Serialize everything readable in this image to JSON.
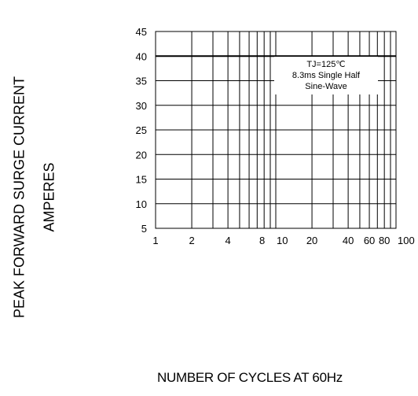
{
  "chart_data": {
    "type": "line",
    "title": "",
    "ylabel": "PEAK FORWARD SURGE CURRENT",
    "ylabel_units": "AMPERES",
    "xlabel": "NUMBER OF CYCLES AT 60Hz",
    "x_scale": "log",
    "xlim": [
      1,
      100
    ],
    "ylim": [
      5,
      45
    ],
    "grid": true,
    "x_ticks": [
      {
        "value": 1,
        "label": "1"
      },
      {
        "value": 2,
        "label": "2"
      },
      {
        "value": 4,
        "label": "4"
      },
      {
        "value": 8,
        "label": "8"
      },
      {
        "value": 10,
        "label": "10"
      },
      {
        "value": 20,
        "label": "20"
      },
      {
        "value": 40,
        "label": "40"
      },
      {
        "value": 60,
        "label": "60"
      },
      {
        "value": 80,
        "label": "80"
      },
      {
        "value": 100,
        "label": "100"
      }
    ],
    "x_grid_values": [
      2,
      3,
      4,
      5,
      6,
      7,
      8,
      9,
      10,
      20,
      30,
      40,
      50,
      60,
      70,
      80,
      90
    ],
    "y_ticks": [
      5,
      10,
      15,
      20,
      25,
      30,
      35,
      40,
      45
    ],
    "series": [
      {
        "x": [
          1,
          100
        ],
        "y": [
          40,
          40
        ]
      }
    ],
    "annotation": {
      "lines": [
        "TJ=125℃",
        "8.3ms Single Half",
        "Sine-Wave"
      ]
    }
  }
}
